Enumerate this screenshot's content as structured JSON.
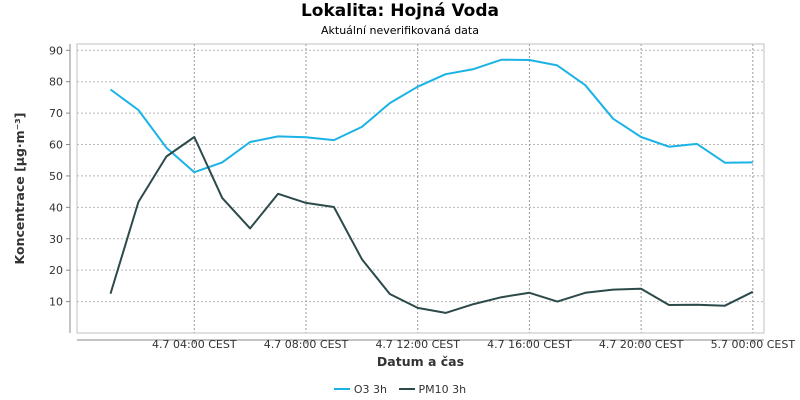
{
  "chart_data": {
    "type": "line",
    "title": "Lokalita: Hojná Voda",
    "subtitle": "Aktuální neverifikovaná data",
    "xlabel": "Datum a čas",
    "ylabel": "Koncentrace [µg·m⁻³]",
    "ylim": [
      0,
      92
    ],
    "xlim": [
      -0.2,
      24.4
    ],
    "y_ticks": [
      10,
      20,
      30,
      40,
      50,
      60,
      70,
      80,
      90
    ],
    "x_ticks": [
      {
        "x": 4,
        "label": "4.7 04:00 CEST"
      },
      {
        "x": 8,
        "label": "4.7 08:00 CEST"
      },
      {
        "x": 12,
        "label": "4.7 12:00 CEST"
      },
      {
        "x": 16,
        "label": "4.7 16:00 CEST"
      },
      {
        "x": 20,
        "label": "4.7 20:00 CEST"
      },
      {
        "x": 24,
        "label": "5.7 00:00 CEST"
      }
    ],
    "x": [
      1,
      2,
      3,
      4,
      5,
      6,
      7,
      8,
      9,
      10,
      11,
      12,
      13,
      14,
      15,
      16,
      17,
      18,
      19,
      20,
      21,
      22,
      23,
      24
    ],
    "grid": true,
    "legend_position": "bottom",
    "series": [
      {
        "name": "O3 3h",
        "color": "#1bb3e6",
        "values": [
          77.5,
          71,
          59,
          51.2,
          54.3,
          60.8,
          62.6,
          62.3,
          61.4,
          65.6,
          73.2,
          78.4,
          82.4,
          84,
          87,
          86.9,
          85.2,
          78.9,
          68.2,
          62.4,
          59.3,
          60.2,
          54.2,
          54.3
        ]
      },
      {
        "name": "PM10 3h",
        "color": "#2d4a4a",
        "values": [
          12.5,
          41.7,
          56.2,
          62.4,
          43,
          33.3,
          44.3,
          41.4,
          40.1,
          23.5,
          12.4,
          8,
          6.4,
          9.2,
          11.4,
          12.8,
          10,
          12.8,
          13.8,
          14.1,
          8.9,
          9,
          8.7,
          13.1
        ]
      }
    ]
  }
}
